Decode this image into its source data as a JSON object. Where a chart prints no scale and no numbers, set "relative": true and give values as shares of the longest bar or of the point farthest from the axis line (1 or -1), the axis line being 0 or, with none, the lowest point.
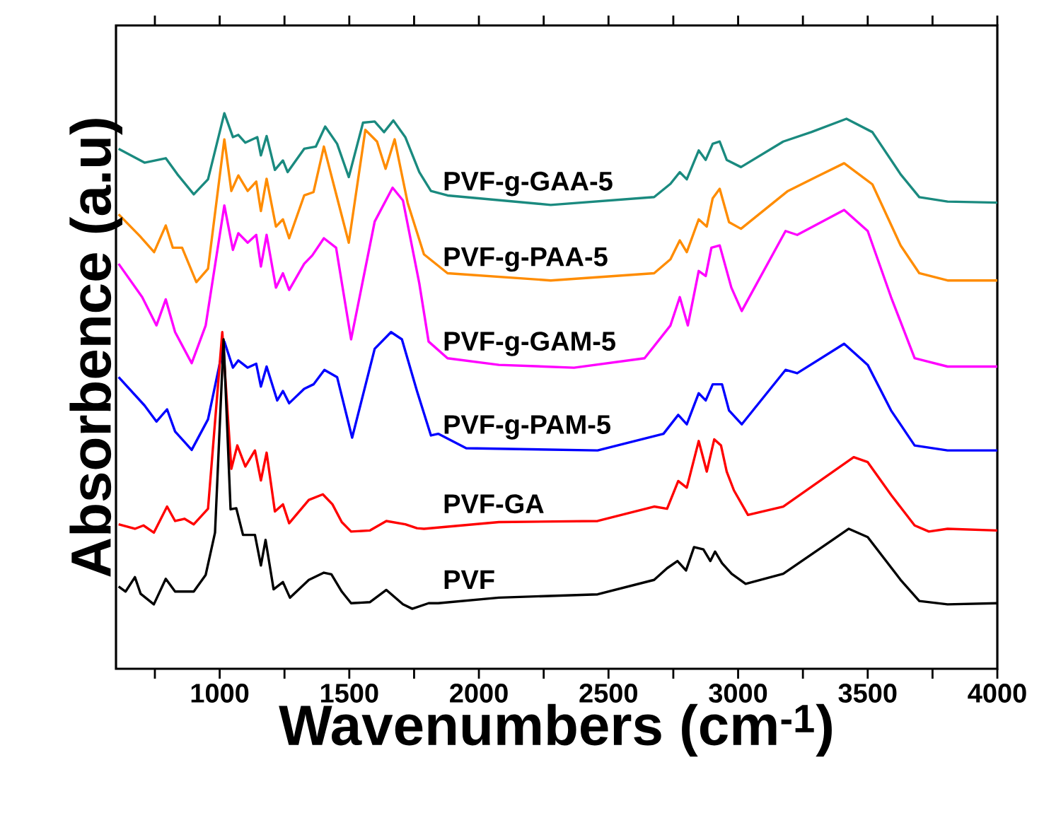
{
  "chart_data": {
    "type": "line",
    "relative": true,
    "xlabel": "Wavenumbers (cm$^{-1}$)",
    "ylabel": "Absorbence (a.u)",
    "xlim": [
      600,
      4000
    ],
    "xticks": [
      {
        "value": 750,
        "label": null
      },
      1000,
      {
        "value": 1250,
        "label": null
      },
      1500,
      {
        "value": 1750,
        "label": null
      },
      2000,
      {
        "value": 2250,
        "label": null
      },
      2500,
      {
        "value": 2750,
        "label": null
      },
      3000,
      {
        "value": 3250,
        "label": null
      },
      3500,
      {
        "value": 3750,
        "label": null
      },
      4000
    ],
    "series": [
      {
        "name": "PVF-g-GAA-5",
        "color": "#1a8a7f",
        "x": [
          610,
          710,
          792,
          837,
          900,
          955,
          1018,
          1051,
          1072,
          1099,
          1145,
          1159,
          1181,
          1213,
          1244,
          1262,
          1326,
          1371,
          1407,
          1453,
          1498,
          1553,
          1598,
          1634,
          1670,
          1716,
          1770,
          1815,
          1879,
          2277,
          2676,
          2739,
          2775,
          2802,
          2848,
          2875,
          2902,
          2929,
          2956,
          3011,
          3174,
          3282,
          3418,
          3518,
          3627,
          3699,
          3808,
          4000
        ],
        "values": [
          0.936,
          0.911,
          0.919,
          0.89,
          0.854,
          0.881,
          1.0,
          0.957,
          0.961,
          0.947,
          0.957,
          0.924,
          0.959,
          0.898,
          0.915,
          0.894,
          0.936,
          0.94,
          0.976,
          0.945,
          0.885,
          0.983,
          0.985,
          0.966,
          0.987,
          0.957,
          0.894,
          0.86,
          0.852,
          0.835,
          0.849,
          0.873,
          0.894,
          0.881,
          0.933,
          0.916,
          0.945,
          0.949,
          0.916,
          0.903,
          0.949,
          0.966,
          0.99,
          0.966,
          0.89,
          0.849,
          0.841,
          0.839
        ]
      },
      {
        "name": "PVF-g-PAA-5",
        "color": "#ff8c00",
        "x": [
          610,
          692,
          747,
          792,
          819,
          855,
          910,
          955,
          1018,
          1045,
          1072,
          1108,
          1141,
          1159,
          1181,
          1217,
          1244,
          1268,
          1326,
          1362,
          1402,
          1444,
          1498,
          1562,
          1607,
          1640,
          1675,
          1725,
          1788,
          1879,
          2277,
          2676,
          2739,
          2775,
          2802,
          2848,
          2879,
          2902,
          2929,
          2965,
          3011,
          3192,
          3300,
          3409,
          3518,
          3627,
          3699,
          3808,
          4000
        ],
        "values": [
          0.818,
          0.779,
          0.75,
          0.798,
          0.758,
          0.758,
          0.696,
          0.72,
          0.953,
          0.86,
          0.888,
          0.86,
          0.877,
          0.824,
          0.882,
          0.796,
          0.809,
          0.775,
          0.852,
          0.858,
          0.94,
          0.864,
          0.767,
          0.97,
          0.949,
          0.9,
          0.953,
          0.839,
          0.746,
          0.712,
          0.699,
          0.712,
          0.737,
          0.771,
          0.75,
          0.809,
          0.796,
          0.847,
          0.864,
          0.804,
          0.792,
          0.86,
          0.885,
          0.91,
          0.872,
          0.762,
          0.712,
          0.699,
          0.699
        ]
      },
      {
        "name": "PVF-g-GAM-5",
        "color": "#ff00ff",
        "x": [
          610,
          701,
          756,
          792,
          828,
          892,
          946,
          1018,
          1051,
          1072,
          1108,
          1141,
          1159,
          1181,
          1217,
          1244,
          1268,
          1326,
          1357,
          1402,
          1449,
          1507,
          1598,
          1667,
          1707,
          1770,
          1806,
          1879,
          2077,
          2367,
          2639,
          2739,
          2775,
          2806,
          2848,
          2875,
          2897,
          2929,
          2974,
          3014,
          3183,
          3228,
          3409,
          3500,
          3590,
          3681,
          3808,
          4000
        ],
        "values": [
          0.729,
          0.669,
          0.618,
          0.665,
          0.606,
          0.55,
          0.618,
          0.834,
          0.754,
          0.784,
          0.767,
          0.781,
          0.724,
          0.781,
          0.686,
          0.712,
          0.682,
          0.729,
          0.744,
          0.775,
          0.758,
          0.593,
          0.805,
          0.866,
          0.843,
          0.694,
          0.589,
          0.559,
          0.547,
          0.542,
          0.559,
          0.618,
          0.669,
          0.618,
          0.716,
          0.707,
          0.758,
          0.762,
          0.686,
          0.644,
          0.788,
          0.781,
          0.826,
          0.788,
          0.669,
          0.559,
          0.544,
          0.544
        ]
      },
      {
        "name": "PVF-g-PAM-5",
        "color": "#0000ff",
        "x": [
          610,
          710,
          756,
          797,
          828,
          892,
          955,
          1018,
          1051,
          1072,
          1108,
          1141,
          1159,
          1181,
          1222,
          1244,
          1268,
          1326,
          1362,
          1404,
          1453,
          1511,
          1598,
          1661,
          1703,
          1761,
          1815,
          1843,
          1951,
          2458,
          2712,
          2769,
          2802,
          2848,
          2875,
          2902,
          2938,
          2965,
          3014,
          3183,
          3228,
          3409,
          3500,
          3590,
          3681,
          3808,
          4000
        ],
        "values": [
          0.525,
          0.474,
          0.445,
          0.467,
          0.427,
          0.394,
          0.449,
          0.589,
          0.542,
          0.555,
          0.542,
          0.549,
          0.508,
          0.544,
          0.483,
          0.5,
          0.478,
          0.504,
          0.512,
          0.538,
          0.525,
          0.416,
          0.576,
          0.606,
          0.593,
          0.5,
          0.42,
          0.423,
          0.397,
          0.393,
          0.423,
          0.457,
          0.44,
          0.496,
          0.483,
          0.512,
          0.512,
          0.465,
          0.44,
          0.538,
          0.532,
          0.585,
          0.547,
          0.465,
          0.402,
          0.393,
          0.393
        ]
      },
      {
        "name": "PVF-GA",
        "color": "#ff0000",
        "x": [
          610,
          673,
          706,
          746,
          797,
          828,
          864,
          900,
          955,
          1010,
          1045,
          1068,
          1099,
          1136,
          1159,
          1181,
          1213,
          1244,
          1268,
          1344,
          1398,
          1435,
          1471,
          1507,
          1580,
          1643,
          1716,
          1761,
          1788,
          2077,
          2458,
          2676,
          2726,
          2769,
          2802,
          2848,
          2879,
          2908,
          2934,
          2956,
          2984,
          3038,
          3174,
          3446,
          3500,
          3590,
          3681,
          3736,
          3808,
          4000
        ],
        "values": [
          0.26,
          0.252,
          0.258,
          0.245,
          0.292,
          0.266,
          0.27,
          0.26,
          0.288,
          0.606,
          0.36,
          0.402,
          0.364,
          0.393,
          0.339,
          0.389,
          0.283,
          0.296,
          0.262,
          0.304,
          0.314,
          0.296,
          0.264,
          0.247,
          0.249,
          0.266,
          0.26,
          0.253,
          0.252,
          0.264,
          0.266,
          0.292,
          0.288,
          0.338,
          0.326,
          0.41,
          0.355,
          0.413,
          0.402,
          0.355,
          0.321,
          0.277,
          0.292,
          0.381,
          0.372,
          0.313,
          0.258,
          0.247,
          0.252,
          0.249
        ]
      },
      {
        "name": "PVF",
        "color": "#000000",
        "x": [
          610,
          637,
          673,
          695,
          746,
          792,
          828,
          900,
          946,
          982,
          1015,
          1042,
          1064,
          1090,
          1136,
          1159,
          1177,
          1208,
          1244,
          1271,
          1344,
          1402,
          1431,
          1471,
          1507,
          1580,
          1643,
          1707,
          1743,
          1806,
          1843,
          2077,
          2458,
          2676,
          2726,
          2766,
          2799,
          2830,
          2866,
          2893,
          2911,
          2938,
          2975,
          3029,
          3174,
          3427,
          3500,
          3627,
          3699,
          3808,
          4000
        ],
        "values": [
          0.148,
          0.139,
          0.165,
          0.135,
          0.116,
          0.162,
          0.139,
          0.139,
          0.169,
          0.245,
          0.593,
          0.287,
          0.289,
          0.241,
          0.241,
          0.186,
          0.232,
          0.143,
          0.156,
          0.128,
          0.16,
          0.173,
          0.17,
          0.139,
          0.118,
          0.12,
          0.142,
          0.116,
          0.108,
          0.118,
          0.118,
          0.128,
          0.134,
          0.16,
          0.181,
          0.194,
          0.177,
          0.219,
          0.215,
          0.194,
          0.211,
          0.19,
          0.171,
          0.153,
          0.171,
          0.252,
          0.237,
          0.16,
          0.122,
          0.116,
          0.118
        ]
      }
    ]
  }
}
